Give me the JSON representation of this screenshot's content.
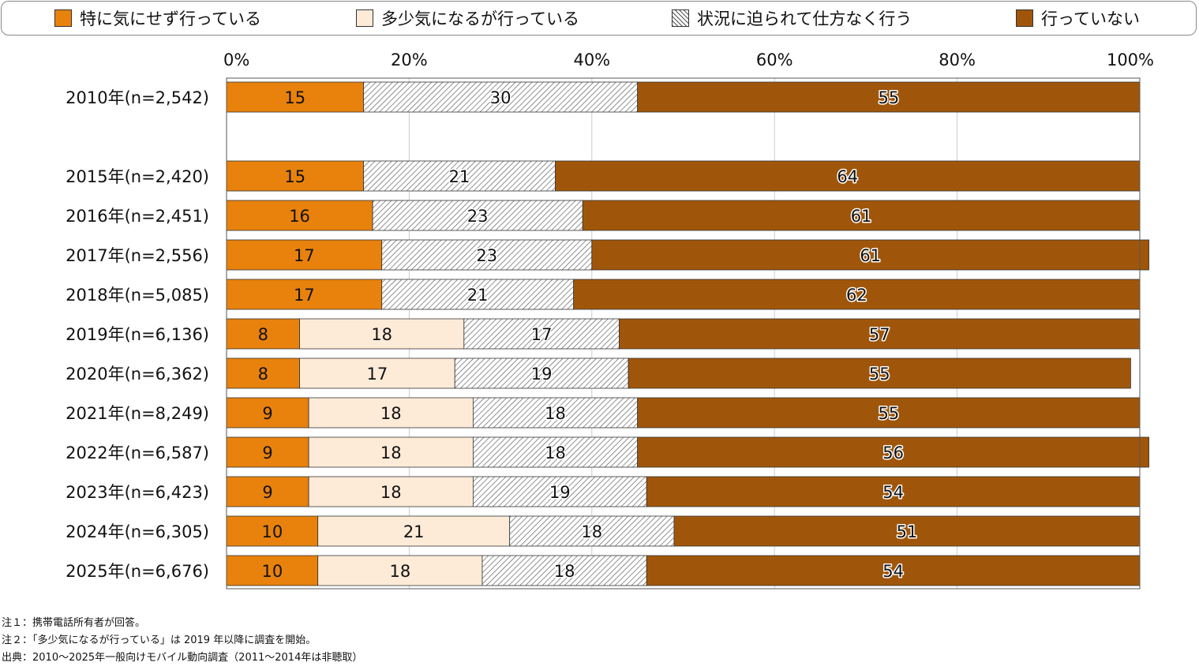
{
  "colors": {
    "s1": "#e8820c",
    "s2": "#fdebd8",
    "s3_bg": "#ffffff",
    "s3_hatch": "#555555",
    "s4": "#a0560a",
    "grid": "#cccccc",
    "frame": "#555555"
  },
  "chart_data": {
    "type": "bar",
    "orientation": "horizontal",
    "stacked": true,
    "xlim": [
      0,
      100
    ],
    "xticks": [
      {
        "value": 0,
        "label": "0%"
      },
      {
        "value": 20,
        "label": "20%"
      },
      {
        "value": 40,
        "label": "40%"
      },
      {
        "value": 60,
        "label": "60%"
      },
      {
        "value": 80,
        "label": "80%"
      },
      {
        "value": 100,
        "label": "100%"
      }
    ],
    "legend_position": "top",
    "categories": [
      "2010年(n=2,542)",
      "",
      "2015年(n=2,420)",
      "2016年(n=2,451)",
      "2017年(n=2,556)",
      "2018年(n=5,085)",
      "2019年(n=6,136)",
      "2020年(n=6,362)",
      "2021年(n=8,249)",
      "2022年(n=6,587)",
      "2023年(n=6,423)",
      "2024年(n=6,305)",
      "2025年(n=6,676)"
    ],
    "series": [
      {
        "name": "特に気にせず行っている",
        "key": "s1",
        "values": [
          15,
          null,
          15,
          16,
          17,
          17,
          8,
          8,
          9,
          9,
          9,
          10,
          10
        ]
      },
      {
        "name": "多少気になるが行っている",
        "key": "s2",
        "values": [
          null,
          null,
          null,
          null,
          null,
          null,
          18,
          17,
          18,
          18,
          18,
          21,
          18
        ]
      },
      {
        "name": "状況に迫られて仕方なく行う",
        "key": "s3",
        "values": [
          30,
          null,
          21,
          23,
          23,
          21,
          17,
          19,
          18,
          18,
          19,
          18,
          18
        ]
      },
      {
        "name": "行っていない",
        "key": "s4",
        "values": [
          55,
          null,
          64,
          61,
          61,
          62,
          57,
          55,
          55,
          56,
          54,
          51,
          54
        ]
      }
    ]
  },
  "notes": {
    "note1": "注１：携帯電話所有者が回答。",
    "note2": "注２：「多少気になるが行っている」は 2019 年以降に調査を開始。",
    "source": "出典：2010～2025年一般向けモバイル動向調査（2011～2014年は非聴取）"
  }
}
